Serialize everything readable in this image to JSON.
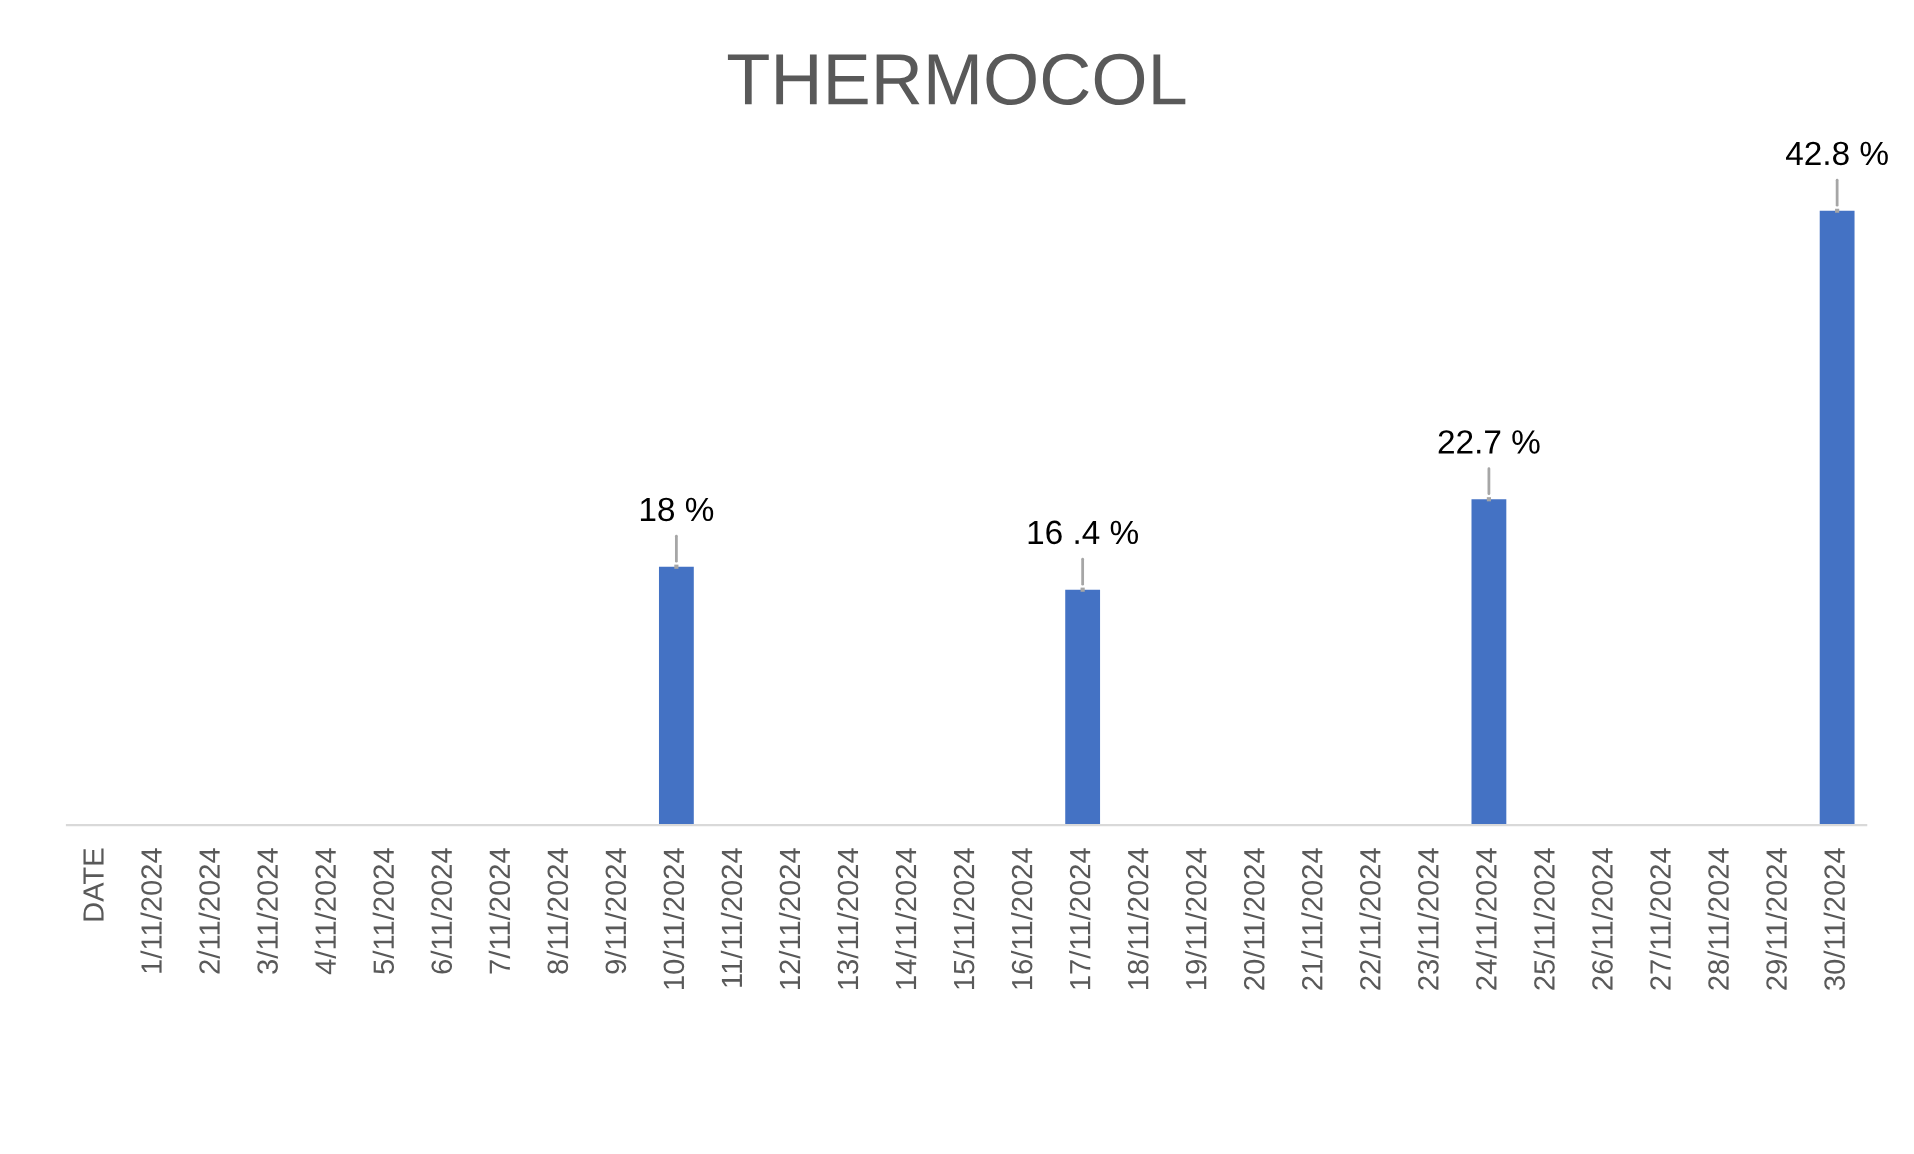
{
  "chart_data": {
    "type": "bar",
    "title": "THERMOCOL",
    "categories": [
      "DATE",
      "1/11/2024",
      "2/11/2024",
      "3/11/2024",
      "4/11/2024",
      "5/11/2024",
      "6/11/2024",
      "7/11/2024",
      "8/11/2024",
      "9/11/2024",
      "10/11/2024",
      "11/11/2024",
      "12/11/2024",
      "13/11/2024",
      "14/11/2024",
      "15/11/2024",
      "16/11/2024",
      "17/11/2024",
      "18/11/2024",
      "19/11/2024",
      "20/11/2024",
      "21/11/2024",
      "22/11/2024",
      "23/11/2024",
      "24/11/2024",
      "25/11/2024",
      "26/11/2024",
      "27/11/2024",
      "28/11/2024",
      "29/11/2024",
      "30/11/2024"
    ],
    "values": [
      null,
      null,
      null,
      null,
      null,
      null,
      null,
      null,
      null,
      null,
      18,
      null,
      null,
      null,
      null,
      null,
      null,
      16.4,
      null,
      null,
      null,
      null,
      null,
      null,
      22.7,
      null,
      null,
      null,
      null,
      null,
      42.8
    ],
    "value_labels": [
      null,
      null,
      null,
      null,
      null,
      null,
      null,
      null,
      null,
      null,
      "18 %",
      null,
      null,
      null,
      null,
      null,
      null,
      "16 .4 %",
      null,
      null,
      null,
      null,
      null,
      null,
      "22.7 %",
      null,
      null,
      null,
      null,
      null,
      "42.8 %"
    ],
    "color": "#4472c4"
  }
}
